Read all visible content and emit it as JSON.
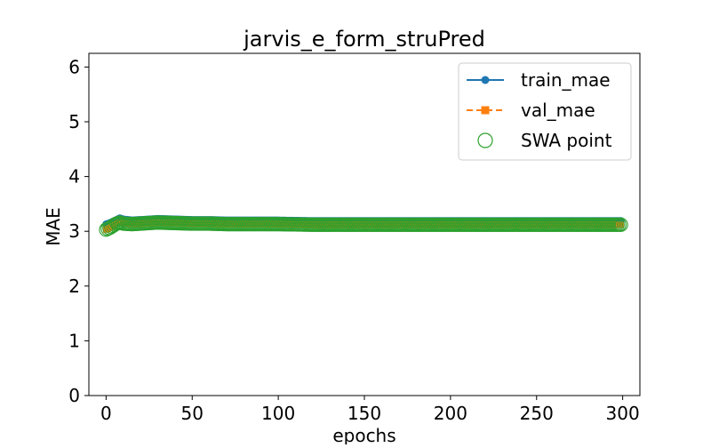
{
  "chart_data": {
    "type": "line",
    "title": "jarvis_e_form_struPred",
    "xlabel": "epochs",
    "ylabel": "MAE",
    "xlim": [
      -10,
      310
    ],
    "ylim": [
      0,
      6.25
    ],
    "xticks": [
      0,
      50,
      100,
      150,
      200,
      250,
      300
    ],
    "yticks": [
      0,
      1,
      2,
      3,
      4,
      5,
      6
    ],
    "grid": false,
    "legend_position": "top-right",
    "x_range": [
      0,
      299
    ],
    "series": [
      {
        "name": "train_mae",
        "style": "solid line with circle markers",
        "color": "#1f77b4",
        "x": [
          0,
          2,
          4,
          6,
          8,
          10,
          15,
          20,
          25,
          30,
          40,
          50,
          60,
          70,
          80,
          90,
          100,
          120,
          140,
          160,
          180,
          200,
          220,
          240,
          260,
          280,
          299
        ],
        "values": [
          3.13,
          3.15,
          3.18,
          3.21,
          3.24,
          3.22,
          3.2,
          3.21,
          3.22,
          3.23,
          3.22,
          3.21,
          3.21,
          3.2,
          3.2,
          3.2,
          3.2,
          3.19,
          3.19,
          3.19,
          3.19,
          3.19,
          3.19,
          3.19,
          3.19,
          3.19,
          3.19
        ]
      },
      {
        "name": "val_mae",
        "style": "dashed line with square markers",
        "color": "#ff7f0e",
        "x": [
          0,
          2,
          4,
          6,
          8,
          10,
          15,
          20,
          25,
          30,
          40,
          50,
          60,
          70,
          80,
          90,
          100,
          120,
          140,
          160,
          180,
          200,
          220,
          240,
          260,
          280,
          299
        ],
        "values": [
          3.03,
          3.06,
          3.1,
          3.14,
          3.16,
          3.14,
          3.13,
          3.14,
          3.15,
          3.16,
          3.15,
          3.14,
          3.14,
          3.13,
          3.13,
          3.13,
          3.13,
          3.12,
          3.12,
          3.12,
          3.12,
          3.12,
          3.12,
          3.12,
          3.12,
          3.12,
          3.12
        ]
      },
      {
        "name": "SWA point",
        "style": "hollow circle markers",
        "color": "#2ca02c",
        "x": [
          0,
          2,
          4,
          6,
          8,
          10,
          15,
          20,
          25,
          30,
          40,
          50,
          60,
          70,
          80,
          90,
          100,
          120,
          140,
          160,
          180,
          200,
          220,
          240,
          260,
          280,
          299
        ],
        "values": [
          3.03,
          3.06,
          3.1,
          3.14,
          3.16,
          3.14,
          3.13,
          3.14,
          3.15,
          3.16,
          3.15,
          3.14,
          3.14,
          3.13,
          3.13,
          3.13,
          3.13,
          3.12,
          3.12,
          3.12,
          3.12,
          3.12,
          3.12,
          3.12,
          3.12,
          3.12,
          3.12
        ]
      }
    ]
  }
}
